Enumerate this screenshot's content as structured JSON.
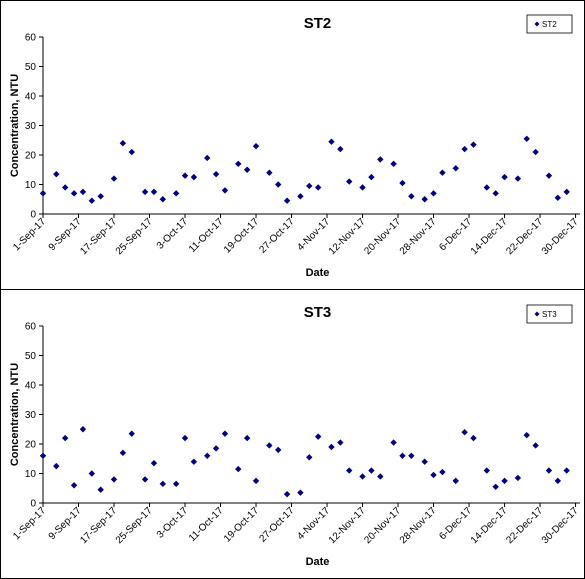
{
  "chart_data": [
    {
      "type": "scatter",
      "title": "ST2",
      "xlabel": "Date",
      "ylabel": "Concentration, NTU",
      "ylim": [
        0,
        60
      ],
      "yticks": [
        0,
        10,
        20,
        30,
        40,
        50,
        60
      ],
      "xlim": [
        "1-Sep-17",
        "31-Dec-17"
      ],
      "xtick_labels": [
        "1-Sep-17",
        "9-Sep-17",
        "17-Sep-17",
        "25-Sep-17",
        "3-Oct-17",
        "11-Oct-17",
        "19-Oct-17",
        "27-Oct-17",
        "4-Nov-17",
        "12-Nov-17",
        "20-Nov-17",
        "28-Nov-17",
        "6-Dec-17",
        "14-Dec-17",
        "22-Dec-17",
        "30-Dec-17"
      ],
      "legend_position": "top-right",
      "marker": "diamond",
      "color": "#000080",
      "series": [
        {
          "name": "ST2",
          "x": [
            "1-Sep-17",
            "4-Sep-17",
            "6-Sep-17",
            "8-Sep-17",
            "10-Sep-17",
            "12-Sep-17",
            "14-Sep-17",
            "17-Sep-17",
            "19-Sep-17",
            "21-Sep-17",
            "24-Sep-17",
            "26-Sep-17",
            "28-Sep-17",
            "1-Oct-17",
            "3-Oct-17",
            "5-Oct-17",
            "8-Oct-17",
            "10-Oct-17",
            "12-Oct-17",
            "15-Oct-17",
            "17-Oct-17",
            "19-Oct-17",
            "22-Oct-17",
            "24-Oct-17",
            "26-Oct-17",
            "29-Oct-17",
            "31-Oct-17",
            "2-Nov-17",
            "5-Nov-17",
            "7-Nov-17",
            "9-Nov-17",
            "12-Nov-17",
            "14-Nov-17",
            "16-Nov-17",
            "19-Nov-17",
            "21-Nov-17",
            "23-Nov-17",
            "26-Nov-17",
            "28-Nov-17",
            "30-Nov-17",
            "3-Dec-17",
            "5-Dec-17",
            "7-Dec-17",
            "10-Dec-17",
            "12-Dec-17",
            "14-Dec-17",
            "17-Dec-17",
            "19-Dec-17",
            "21-Dec-17",
            "24-Dec-17",
            "26-Dec-17",
            "28-Dec-17"
          ],
          "y": [
            7,
            13.5,
            9,
            7,
            7.5,
            4.5,
            6,
            12,
            24,
            21,
            7.5,
            7.5,
            5,
            7,
            13,
            12.5,
            19,
            13.5,
            8,
            17,
            15,
            23,
            14,
            10,
            4.5,
            6,
            9.5,
            9,
            24.5,
            22,
            11,
            9,
            12.5,
            18.5,
            17,
            10.5,
            6,
            5,
            7,
            14,
            15.5,
            22,
            23.5,
            9,
            7,
            12.5,
            12,
            25.5,
            21,
            13,
            5.5,
            7.5
          ]
        }
      ]
    },
    {
      "type": "scatter",
      "title": "ST3",
      "xlabel": "Date",
      "ylabel": "Concentration, NTU",
      "ylim": [
        0,
        60
      ],
      "yticks": [
        0,
        10,
        20,
        30,
        40,
        50,
        60
      ],
      "xlim": [
        "1-Sep-17",
        "31-Dec-17"
      ],
      "xtick_labels": [
        "1-Sep-17",
        "9-Sep-17",
        "17-Sep-17",
        "25-Sep-17",
        "3-Oct-17",
        "11-Oct-17",
        "19-Oct-17",
        "27-Oct-17",
        "4-Nov-17",
        "12-Nov-17",
        "20-Nov-17",
        "28-Nov-17",
        "6-Dec-17",
        "14-Dec-17",
        "22-Dec-17",
        "30-Dec-17"
      ],
      "legend_position": "top-right",
      "marker": "diamond",
      "color": "#000080",
      "series": [
        {
          "name": "ST3",
          "x": [
            "1-Sep-17",
            "4-Sep-17",
            "6-Sep-17",
            "8-Sep-17",
            "10-Sep-17",
            "12-Sep-17",
            "14-Sep-17",
            "17-Sep-17",
            "19-Sep-17",
            "21-Sep-17",
            "24-Sep-17",
            "26-Sep-17",
            "28-Sep-17",
            "1-Oct-17",
            "3-Oct-17",
            "5-Oct-17",
            "8-Oct-17",
            "10-Oct-17",
            "12-Oct-17",
            "15-Oct-17",
            "17-Oct-17",
            "19-Oct-17",
            "22-Oct-17",
            "24-Oct-17",
            "26-Oct-17",
            "29-Oct-17",
            "31-Oct-17",
            "2-Nov-17",
            "5-Nov-17",
            "7-Nov-17",
            "9-Nov-17",
            "12-Nov-17",
            "14-Nov-17",
            "16-Nov-17",
            "19-Nov-17",
            "21-Nov-17",
            "23-Nov-17",
            "26-Nov-17",
            "28-Nov-17",
            "30-Nov-17",
            "3-Dec-17",
            "5-Dec-17",
            "7-Dec-17",
            "10-Dec-17",
            "12-Dec-17",
            "14-Dec-17",
            "17-Dec-17",
            "19-Dec-17",
            "21-Dec-17",
            "24-Dec-17",
            "26-Dec-17",
            "28-Dec-17"
          ],
          "y": [
            16,
            12.5,
            22,
            6,
            25,
            10,
            4.5,
            8,
            17,
            23.5,
            8,
            13.5,
            6.5,
            6.5,
            22,
            14,
            16,
            18.5,
            23.5,
            11.5,
            22,
            7.5,
            19.5,
            18,
            3,
            3.5,
            15.5,
            22.5,
            19,
            20.5,
            11,
            9,
            11,
            9,
            20.5,
            16,
            16,
            14,
            9.5,
            10.5,
            7.5,
            24,
            22,
            11,
            5.5,
            7.5,
            8.5,
            23,
            19.5,
            11,
            7.5,
            11
          ]
        }
      ]
    }
  ]
}
